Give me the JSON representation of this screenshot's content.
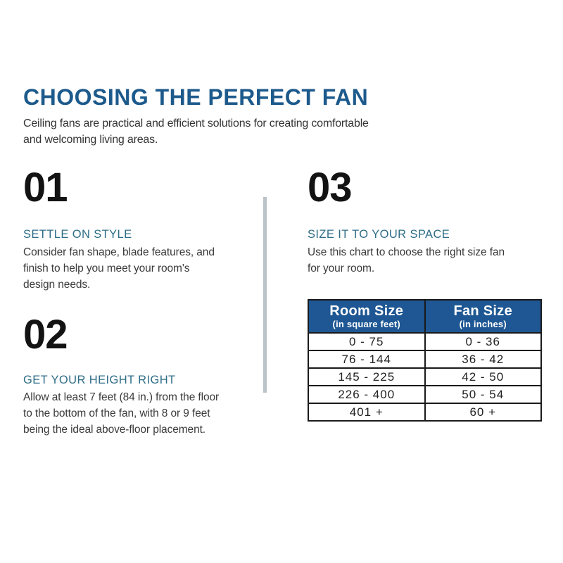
{
  "page": {
    "title": "CHOOSING THE PERFECT FAN",
    "subtitle_lines": [
      "Ceiling fans are practical and efficient solutions for creating comfortable",
      "and welcoming living areas."
    ]
  },
  "sections": [
    {
      "number": "01",
      "heading": "SETTLE ON STYLE",
      "body_lines": [
        "Consider fan shape, blade features, and",
        "finish to help you meet your room's",
        "design needs."
      ]
    },
    {
      "number": "02",
      "heading": "GET YOUR HEIGHT RIGHT",
      "body_lines": [
        "Allow at least 7 feet (84 in.) from the floor",
        "to the bottom of the fan, with 8 or 9 feet",
        "being the ideal above-floor placement."
      ]
    },
    {
      "number": "03",
      "heading": "SIZE IT TO YOUR SPACE",
      "body_lines": [
        "Use this chart to choose the right size fan",
        "for your room."
      ]
    }
  ],
  "table": {
    "headers": [
      {
        "title": "Room Size",
        "subtitle": "(in square feet)"
      },
      {
        "title": "Fan Size",
        "subtitle": "(in inches)"
      }
    ],
    "rows": [
      [
        "0 - 75",
        "0 - 36"
      ],
      [
        "76 - 144",
        "36 - 42"
      ],
      [
        "145 - 225",
        "42 - 50"
      ],
      [
        "226 - 400",
        "50 - 54"
      ],
      [
        "401 +",
        "60 +"
      ]
    ]
  },
  "colors": {
    "title_blue": "#1d5a8c",
    "heading_teal": "#2e6d87",
    "table_header_bg": "#1e5793",
    "divider_gray": "#bac3c7"
  }
}
